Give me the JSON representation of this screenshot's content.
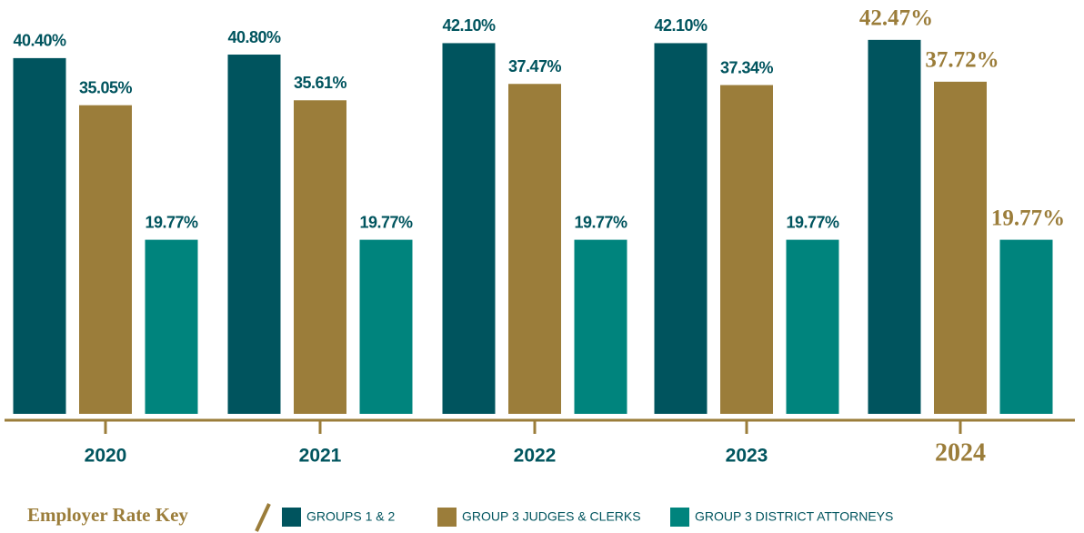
{
  "chart_data": {
    "type": "bar",
    "categories": [
      "2020",
      "2021",
      "2022",
      "2023",
      "2024"
    ],
    "series": [
      {
        "name": "GROUPS 1 & 2",
        "color": "#00545e",
        "values": [
          40.4,
          40.8,
          42.1,
          42.1,
          42.47
        ],
        "value_labels": [
          "40.40%",
          "40.80%",
          "42.10%",
          "42.10%",
          "42.47%"
        ]
      },
      {
        "name": "GROUP 3 JUDGES & CLERKS",
        "color": "#9b7d3a",
        "values": [
          35.05,
          35.61,
          37.47,
          37.34,
          37.72
        ],
        "value_labels": [
          "35.05%",
          "35.61%",
          "37.47%",
          "37.34%",
          "37.72%"
        ]
      },
      {
        "name": "GROUP 3 DISTRICT ATTORNEYS",
        "color": "#00847d",
        "values": [
          19.77,
          19.77,
          19.77,
          19.77,
          19.77
        ],
        "value_labels": [
          "19.77%",
          "19.77%",
          "19.77%",
          "19.77%",
          "19.77%"
        ]
      }
    ],
    "ylim": [
      0,
      47
    ],
    "legend_title": "Employer Rate Key"
  }
}
